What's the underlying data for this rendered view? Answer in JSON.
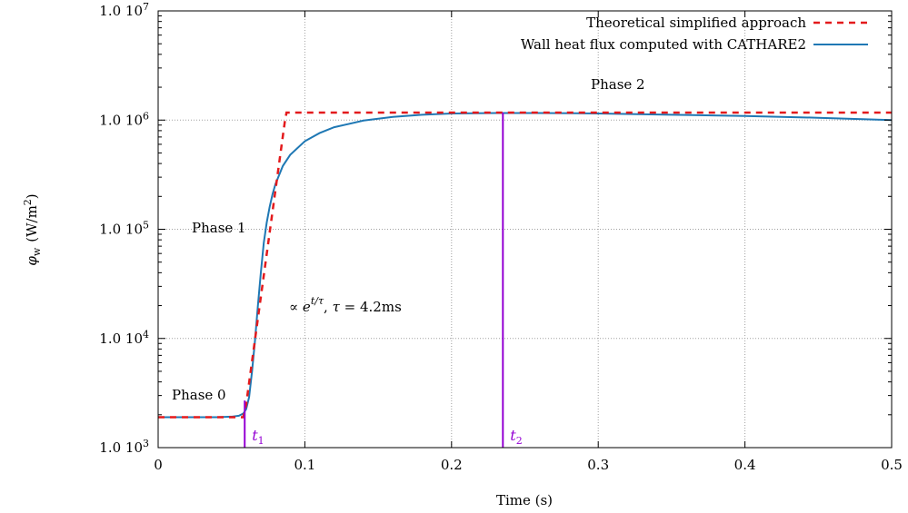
{
  "chart_data": {
    "type": "line",
    "xlabel": "Time (s)",
    "ylabel_symbol": "φ",
    "ylabel_subscript": "w",
    "ylabel_unit": "(W/m",
    "ylabel_unit_power": "2",
    "ylabel_unit_close": ")",
    "xlim": [
      0,
      0.5
    ],
    "ylim": [
      1000,
      10000000
    ],
    "yscale": "log",
    "grid": true,
    "legend_position": "top-right",
    "x_ticks": [
      0,
      0.1,
      0.2,
      0.3,
      0.4,
      0.5
    ],
    "x_tick_labels": [
      "0",
      "0.1",
      "0.2",
      "0.3",
      "0.4",
      "0.5"
    ],
    "y_ticks": [
      1000,
      10000,
      100000,
      1000000,
      10000000
    ],
    "y_tick_mantissa": [
      "1.0 10",
      "1.0 10",
      "1.0 10",
      "1.0 10",
      "1.0 10"
    ],
    "y_tick_exponent": [
      "3",
      "4",
      "5",
      "6",
      "7"
    ],
    "series": [
      {
        "name": "Theoretical simplified approach",
        "color": "#e31a1c",
        "style": "dashed",
        "x": [
          0,
          0.058,
          0.06,
          0.0865,
          0.0875,
          0.5
        ],
        "y": [
          1900,
          1900,
          2500,
          1000000,
          1170000,
          1170000
        ]
      },
      {
        "name": "Wall heat flux computed with CATHARE2",
        "color": "#1f78b4",
        "style": "solid",
        "x": [
          0,
          0.04,
          0.05,
          0.055,
          0.058,
          0.06,
          0.062,
          0.064,
          0.066,
          0.068,
          0.07,
          0.072,
          0.074,
          0.076,
          0.078,
          0.08,
          0.085,
          0.09,
          0.1,
          0.11,
          0.12,
          0.14,
          0.16,
          0.18,
          0.2,
          0.23,
          0.26,
          0.3,
          0.35,
          0.4,
          0.45,
          0.5
        ],
        "y": [
          1900,
          1900,
          1920,
          1960,
          2050,
          2250,
          2900,
          5000,
          9500,
          20000,
          40000,
          75000,
          115000,
          160000,
          210000,
          260000,
          380000,
          480000,
          640000,
          760000,
          860000,
          990000,
          1070000,
          1120000,
          1150000,
          1160000,
          1160000,
          1150000,
          1120000,
          1090000,
          1050000,
          1000000
        ]
      }
    ],
    "markers": [
      {
        "label": "t",
        "sub": "1",
        "x": 0.059,
        "y_top": 2700,
        "color": "#9400d3"
      },
      {
        "label": "t",
        "sub": "2",
        "x": 0.235,
        "y_top": 1170000,
        "color": "#9400d3"
      }
    ],
    "annotations": {
      "phase0": "Phase 0",
      "phase1": "Phase 1",
      "phase2": "Phase 2",
      "exp_prop": "∝ ",
      "exp_base": "e",
      "exp_power": "t/τ",
      "exp_sep": ", ",
      "tau_sym": "τ",
      "tau_eq": " = 4.2ms"
    }
  }
}
